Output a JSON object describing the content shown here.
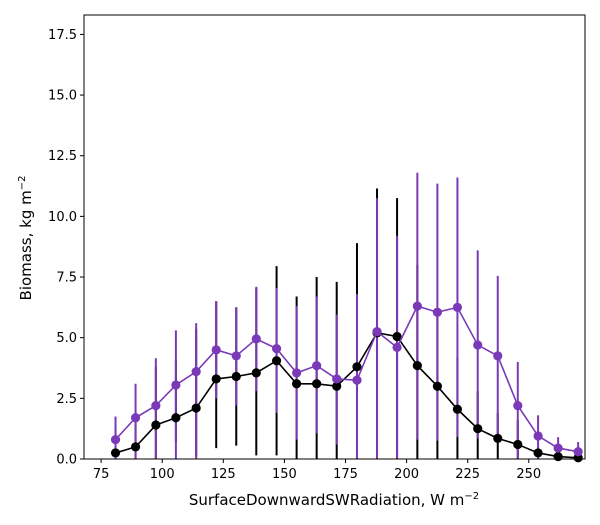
{
  "chart_data": {
    "type": "line",
    "title": "",
    "xlabel_text": "SurfaceDownwardSWRadiation,  W m",
    "xlabel_sup": "−2",
    "ylabel_text": "Biomass,  kg m",
    "ylabel_sup": "−2",
    "xlim": [
      68,
      273
    ],
    "ylim": [
      0,
      18.3
    ],
    "xticks": [
      75,
      100,
      125,
      150,
      175,
      200,
      225,
      250
    ],
    "xtick_labels": [
      "75",
      "100",
      "125",
      "150",
      "175",
      "200",
      "225",
      "250"
    ],
    "yticks": [
      0,
      2.5,
      5,
      7.5,
      10,
      12.5,
      15,
      17.5
    ],
    "ytick_labels": [
      "0.0",
      "2.5",
      "5.0",
      "7.5",
      "10.0",
      "12.5",
      "15.0",
      "17.5"
    ],
    "grid": false,
    "x": [
      80.9,
      89.1,
      97.4,
      105.6,
      113.9,
      122.1,
      130.3,
      138.5,
      146.8,
      155.0,
      163.2,
      171.4,
      179.7,
      187.9,
      196.1,
      204.4,
      212.6,
      220.8,
      229.1,
      237.3,
      245.5,
      253.8,
      262.0,
      270.2
    ],
    "series": [
      {
        "color": "#000000",
        "values": [
          0.25,
          0.5,
          1.4,
          1.7,
          2.1,
          3.3,
          3.4,
          3.55,
          4.05,
          3.1,
          3.1,
          3.0,
          3.8,
          5.2,
          5.05,
          3.85,
          3.0,
          2.05,
          1.25,
          0.85,
          0.6,
          0.25,
          0.1,
          0.05
        ],
        "err_low": [
          0.0,
          0.0,
          0.0,
          0.7,
          0.1,
          0.45,
          0.55,
          0.15,
          0.15,
          0.0,
          0.0,
          0.0,
          0.0,
          0.0,
          0.0,
          0.0,
          0.0,
          0.0,
          0.0,
          0.0,
          0.0,
          0.0,
          0.0,
          0.0
        ],
        "err_high": [
          1.35,
          1.95,
          3.8,
          4.1,
          5.35,
          6.5,
          6.25,
          7.05,
          7.95,
          6.7,
          7.5,
          7.3,
          8.9,
          11.15,
          10.75,
          8.0,
          6.1,
          4.2,
          2.8,
          1.9,
          1.6,
          0.5,
          0.2,
          0.1
        ]
      },
      {
        "color": "#7a3ab8",
        "values": [
          0.8,
          1.7,
          2.2,
          3.05,
          3.6,
          4.5,
          4.25,
          4.95,
          4.55,
          3.55,
          3.85,
          3.3,
          3.25,
          5.25,
          4.6,
          6.3,
          6.05,
          6.25,
          4.7,
          4.25,
          2.2,
          0.95,
          0.45,
          0.3
        ],
        "err_low": [
          0.0,
          0.0,
          0.0,
          0.0,
          0.0,
          2.5,
          2.2,
          2.8,
          1.9,
          0.8,
          1.05,
          0.6,
          0.0,
          0.0,
          0.0,
          0.8,
          0.75,
          0.9,
          0.85,
          0.9,
          0.0,
          0.0,
          0.0,
          0.0
        ],
        "err_high": [
          1.75,
          3.1,
          4.15,
          5.3,
          5.6,
          6.5,
          6.25,
          7.1,
          7.05,
          6.3,
          6.7,
          5.95,
          6.8,
          10.75,
          9.2,
          11.8,
          11.35,
          11.6,
          8.6,
          7.55,
          4.0,
          1.8,
          0.9,
          0.7
        ]
      }
    ]
  }
}
